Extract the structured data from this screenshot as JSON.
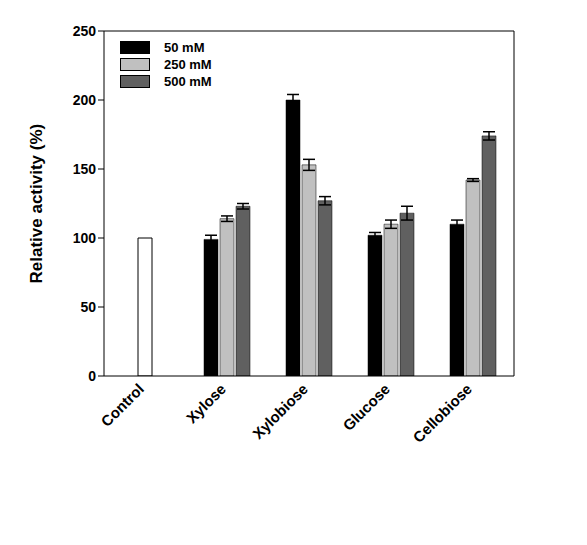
{
  "chart_data": {
    "type": "bar",
    "y_label": "Relative activity (%)",
    "categories": [
      "Control",
      "Xylose",
      "Xylobiose",
      "Glucose",
      "Cellobiose"
    ],
    "series": [
      {
        "color": "#ffffff",
        "values": [
          100,
          null,
          null,
          null,
          null
        ],
        "errors": [
          0,
          null,
          null,
          null,
          null
        ]
      },
      {
        "name": "50 mM",
        "color": "#000000",
        "values": [
          null,
          99,
          200,
          102,
          110
        ],
        "errors": [
          null,
          3,
          4,
          2,
          3
        ]
      },
      {
        "name": "250 mM",
        "color": "#c0c0c0",
        "values": [
          null,
          114,
          153,
          110,
          142
        ],
        "errors": [
          null,
          2,
          4,
          3,
          1
        ]
      },
      {
        "name": "500 mM",
        "color": "#606060",
        "values": [
          null,
          123,
          127,
          118,
          174
        ],
        "errors": [
          null,
          2,
          3,
          5,
          3
        ]
      }
    ],
    "ylim": [
      0,
      250
    ],
    "yticks": [
      0,
      50,
      100,
      150,
      200,
      250
    ],
    "grid": false,
    "legend": "upper left"
  }
}
